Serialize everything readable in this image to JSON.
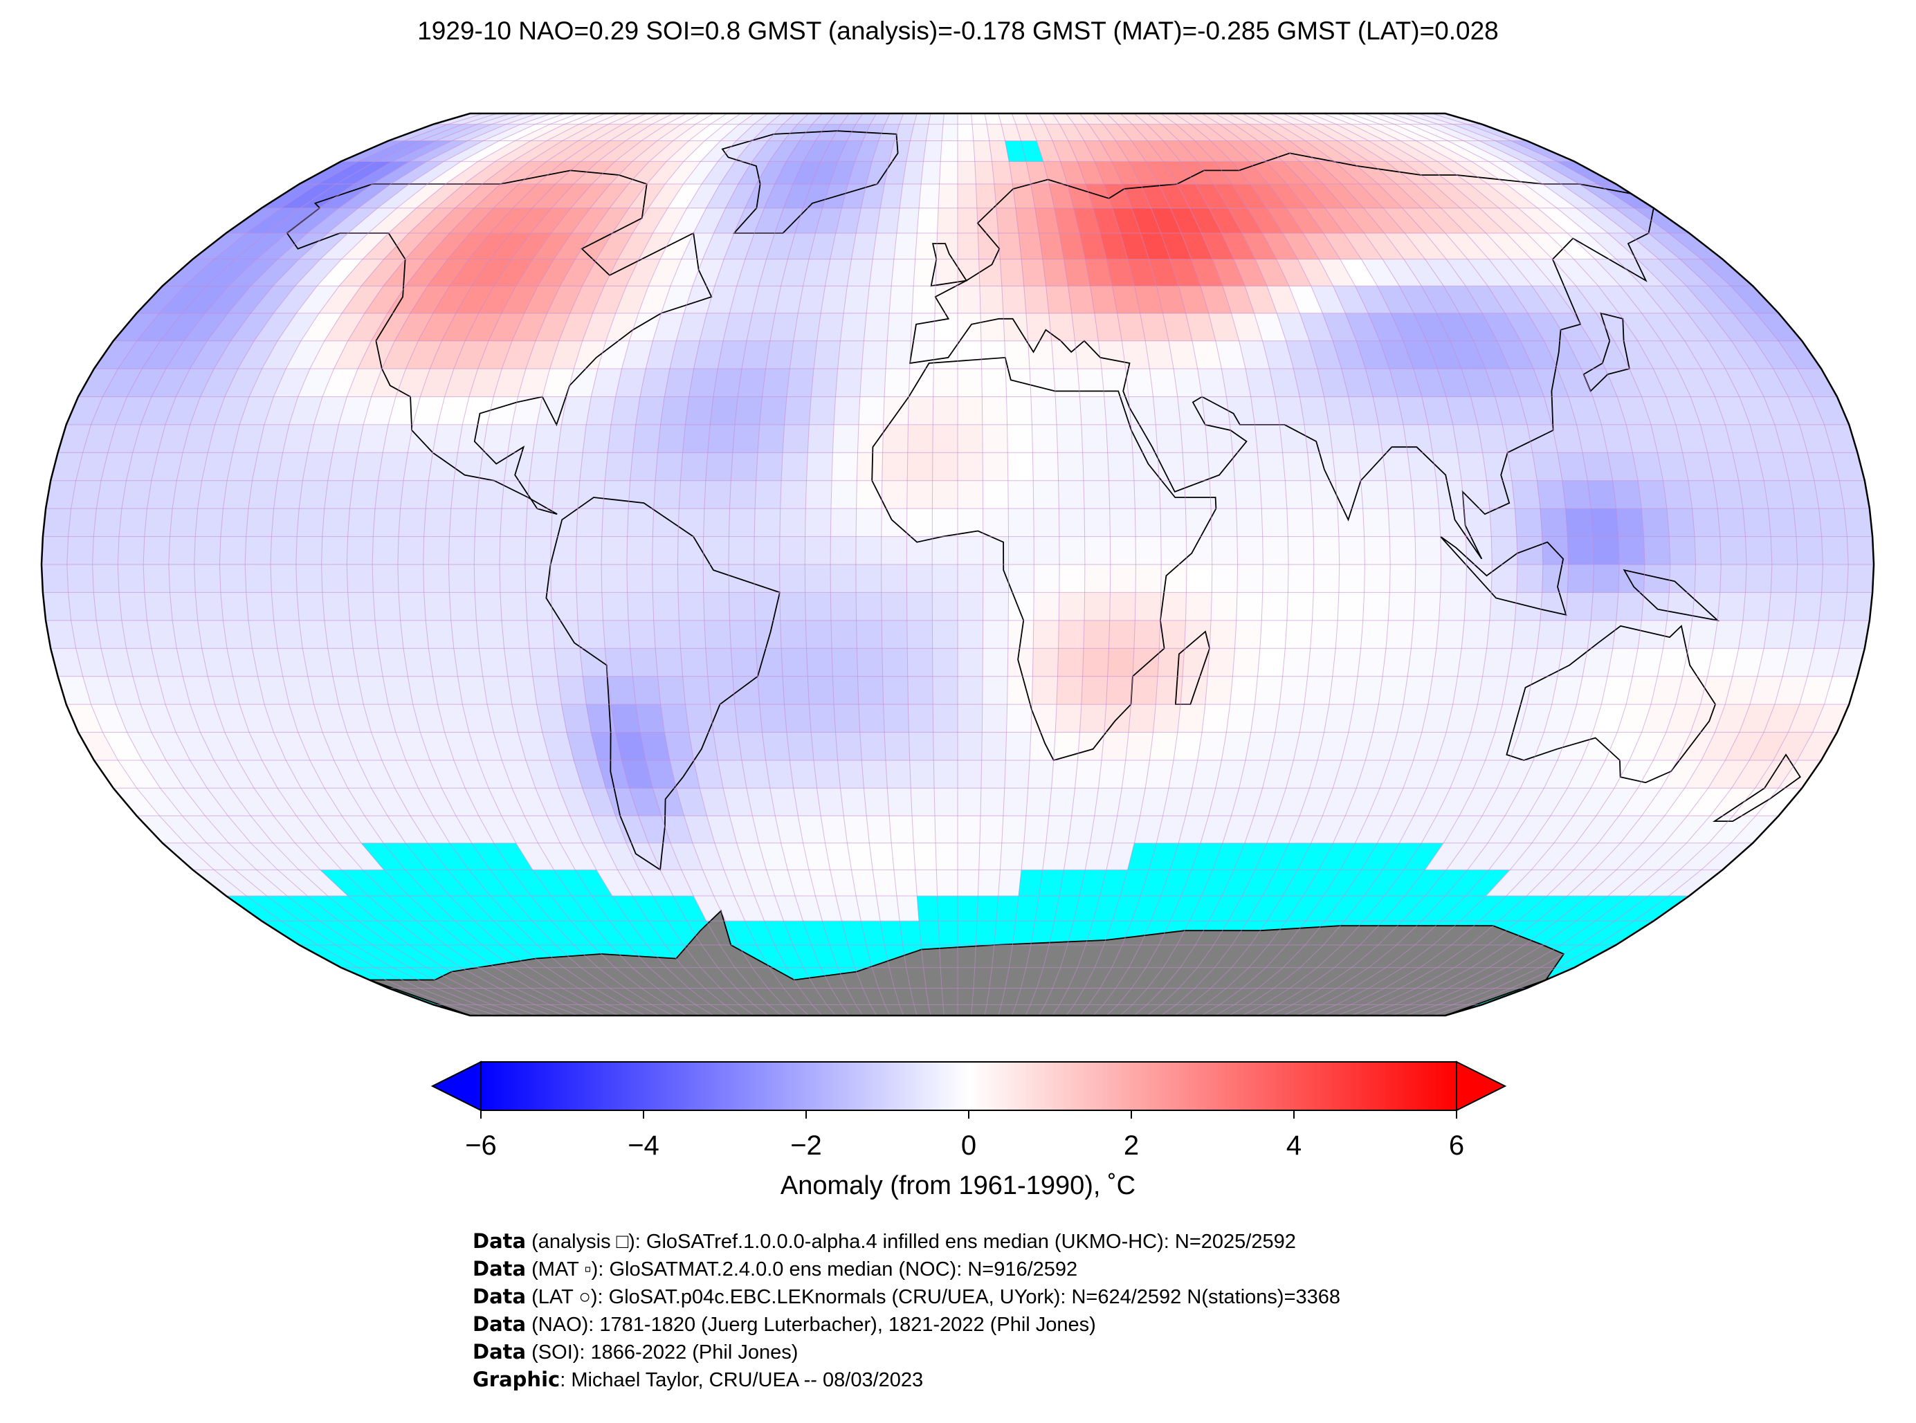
{
  "title": "1929-10 NAO=0.29 SOI=0.8 GMST (analysis)=-0.178 GMST (MAT)=-0.285 GMST (LAT)=0.028",
  "colorbar": {
    "label": "Anomaly (from 1961-1990), ˚C",
    "ticks": [
      "−6",
      "−4",
      "−2",
      "0",
      "2",
      "4",
      "6"
    ],
    "tick_values": [
      -6,
      -4,
      -2,
      0,
      2,
      4,
      6
    ],
    "range": [
      -6,
      6
    ],
    "colors": {
      "min": "#0000ff",
      "mid": "#ffffff",
      "max": "#ff0000"
    },
    "extend": "both"
  },
  "map": {
    "projection": "Robinson",
    "colors": {
      "missing": "#00ffff",
      "land_ice": "#808080",
      "grid": "#c58ad0",
      "coastline": "#000000",
      "borders": "#888888"
    },
    "regional_anomalies": [
      {
        "region": "North America (west/north)",
        "anomaly": 3.0
      },
      {
        "region": "Northern Russia / Siberia",
        "anomaly": 4.0
      },
      {
        "region": "Eastern Europe",
        "anomaly": 2.5
      },
      {
        "region": "Greenland",
        "anomaly": -2.0
      },
      {
        "region": "Central Asia / China",
        "anomaly": -2.5
      },
      {
        "region": "North Pacific",
        "anomaly": -2.5
      },
      {
        "region": "Southern Africa",
        "anomaly": 1.5
      },
      {
        "region": "South Atlantic",
        "anomaly": -1.0
      },
      {
        "region": "Southern Ocean",
        "anomaly": null
      }
    ]
  },
  "credits": [
    {
      "bold": "Data",
      "text": " (analysis □): GloSATref.1.0.0.0-alpha.4 infilled ens median (UKMO-HC): N=2025/2592"
    },
    {
      "bold": "Data",
      "text": " (MAT ▫): GloSATMAT.2.4.0.0 ens median (NOC): N=916/2592"
    },
    {
      "bold": "Data",
      "text": " (LAT ○): GloSAT.p04c.EBC.LEKnormals (CRU/UEA, UYork): N=624/2592 N(stations)=3368"
    },
    {
      "bold": "Data",
      "text": " (NAO): 1781-1820 (Juerg Luterbacher), 1821-2022 (Phil Jones)"
    },
    {
      "bold": "Data",
      "text": " (SOI): 1866-2022 (Phil Jones)"
    },
    {
      "bold": "Graphic",
      "text": ": Michael Taylor, CRU/UEA -- 08/03/2023"
    }
  ]
}
